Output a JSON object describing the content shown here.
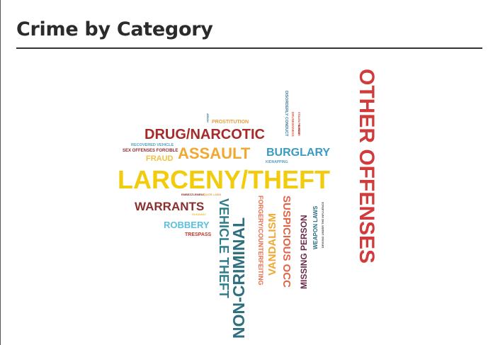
{
  "title": "Crime by Category",
  "chart_data": {
    "type": "wordcloud",
    "title": "Crime by Category",
    "words": [
      {
        "text": "OTHER OFFENSES",
        "weight": 100,
        "color": "#d13b3b",
        "orientation": "vertical"
      },
      {
        "text": "LARCENY/THEFT",
        "weight": 100,
        "color": "#f2cc0c",
        "orientation": "horizontal"
      },
      {
        "text": "NON-CRIMINAL",
        "weight": 63,
        "color": "#2e6f80",
        "orientation": "vertical"
      },
      {
        "text": "DRUG/NARCOTIC",
        "weight": 55,
        "color": "#a52a2a",
        "orientation": "horizontal"
      },
      {
        "text": "ASSAULT",
        "weight": 61,
        "color": "#f0a830",
        "orientation": "horizontal"
      },
      {
        "text": "VEHICLE THEFT",
        "weight": 54,
        "color": "#2e7d8a",
        "orientation": "vertical"
      },
      {
        "text": "WARRANTS",
        "weight": 50,
        "color": "#8b2e2e",
        "orientation": "horizontal"
      },
      {
        "text": "BURGLARY",
        "weight": 48,
        "color": "#3a9bc2",
        "orientation": "horizontal"
      },
      {
        "text": "SUSPICIOUS OCC",
        "weight": 46,
        "color": "#e0644a",
        "orientation": "vertical"
      },
      {
        "text": "VANDALISM",
        "weight": 45,
        "color": "#f0a830",
        "orientation": "vertical"
      },
      {
        "text": "ROBBERY",
        "weight": 40,
        "color": "#5bc0de",
        "orientation": "horizontal"
      },
      {
        "text": "MISSING PERSON",
        "weight": 38,
        "color": "#6b2a4a",
        "orientation": "vertical"
      },
      {
        "text": "FORGERY/COUNTERFEITING",
        "weight": 26,
        "color": "#e86a4a",
        "orientation": "vertical"
      },
      {
        "text": "FRAUD",
        "weight": 25,
        "color": "#f0c040",
        "orientation": "horizontal"
      },
      {
        "text": "WEAPON LAWS",
        "weight": 22,
        "color": "#2e6f80",
        "orientation": "vertical"
      },
      {
        "text": "TRESPASS",
        "weight": 18,
        "color": "#c0392b",
        "orientation": "horizontal"
      },
      {
        "text": "PROSTITUTION",
        "weight": 16,
        "color": "#e8a040",
        "orientation": "horizontal"
      },
      {
        "text": "SEX OFFENSES FORCIBLE",
        "weight": 15,
        "color": "#8b2e2e",
        "orientation": "horizontal"
      },
      {
        "text": "RECOVERED VEHICLE",
        "weight": 14,
        "color": "#5a9fc0",
        "orientation": "horizontal"
      },
      {
        "text": "DISORDERLY CONDUCT",
        "weight": 14,
        "color": "#3a7a9a",
        "orientation": "vertical"
      },
      {
        "text": "DRUNKENNESS",
        "weight": 13,
        "color": "#e0644a",
        "orientation": "vertical"
      },
      {
        "text": "KIDNAPPING",
        "weight": 12,
        "color": "#5a9fc0",
        "orientation": "horizontal"
      },
      {
        "text": "DRIVING UNDER THE INFLUENCE",
        "weight": 12,
        "color": "#4a4a4a",
        "orientation": "vertical"
      },
      {
        "text": "EMBEZZLEMENT",
        "weight": 10,
        "color": "#8b2e2e",
        "orientation": "horizontal"
      },
      {
        "text": "LIQUOR LAWS",
        "weight": 10,
        "color": "#e8a040",
        "orientation": "horizontal"
      },
      {
        "text": "RUNAWAY",
        "weight": 10,
        "color": "#f0c040",
        "orientation": "horizontal"
      },
      {
        "text": "ARSON",
        "weight": 9,
        "color": "#2e6f80",
        "orientation": "vertical"
      },
      {
        "text": "STOLEN PROPERTY",
        "weight": 9,
        "color": "#c0392b",
        "orientation": "vertical"
      },
      {
        "text": "SUICIDE",
        "weight": 8,
        "color": "#a52a2a",
        "orientation": "vertical"
      }
    ]
  }
}
